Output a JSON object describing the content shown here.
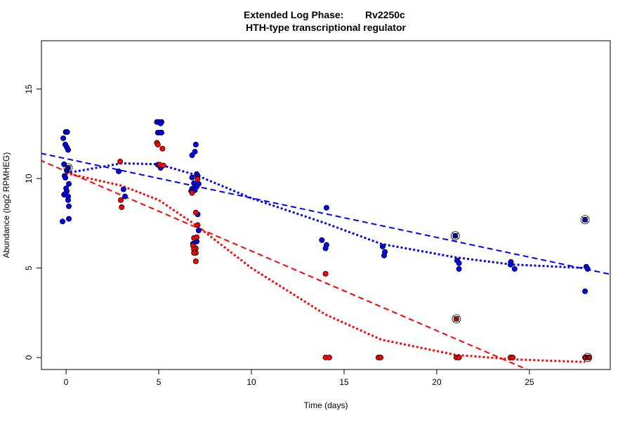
{
  "chart_data": {
    "type": "scatter",
    "title_line1_left": "Extended Log Phase:",
    "title_line1_right": "Rv2250c",
    "title_line2": "HTH-type transcriptional regulator",
    "xlabel": "Time  (days)",
    "ylabel": "Abundance  (log2 RPMHEG)",
    "xlim": [
      -1.33,
      29.36
    ],
    "ylim": [
      -0.67,
      17.7
    ],
    "xticks": [
      0,
      5,
      10,
      15,
      20,
      25
    ],
    "yticks": [
      0,
      5,
      10,
      15
    ],
    "grid": false,
    "colors": {
      "blue": "#0000ff",
      "red": "#ff0000"
    },
    "series": [
      {
        "color": "#0000ff",
        "points": [
          [
            -0.02,
            12.6
          ],
          [
            0.06,
            12.6
          ],
          [
            -0.15,
            12.25
          ],
          [
            -0.04,
            11.9
          ],
          [
            0.04,
            11.75
          ],
          [
            0.11,
            11.6
          ],
          [
            -0.11,
            10.8
          ],
          [
            0.11,
            10.6
          ],
          [
            0.04,
            10.45
          ],
          [
            -0.08,
            10.15
          ],
          [
            -0.04,
            10.05
          ],
          [
            0.15,
            9.7
          ],
          [
            0,
            9.45
          ],
          [
            0.04,
            9.3
          ],
          [
            -0.11,
            9.1
          ],
          [
            -0.04,
            9.15
          ],
          [
            0.11,
            9.0
          ],
          [
            0.11,
            8.8
          ],
          [
            0.15,
            8.45
          ],
          [
            0.15,
            7.75
          ],
          [
            -0.19,
            7.6
          ],
          [
            2.84,
            10.4
          ],
          [
            3.1,
            9.4
          ],
          [
            3.18,
            9.0
          ],
          [
            4.9,
            13.16
          ],
          [
            5.0,
            13.16
          ],
          [
            5.15,
            13.16
          ],
          [
            5.1,
            13.08
          ],
          [
            4.95,
            12.57
          ],
          [
            5.05,
            12.57
          ],
          [
            5.15,
            12.57
          ],
          [
            4.95,
            10.77
          ],
          [
            5.1,
            10.6
          ],
          [
            7.0,
            11.9
          ],
          [
            6.95,
            11.5
          ],
          [
            6.8,
            11.3
          ],
          [
            7.05,
            10.25
          ],
          [
            7.1,
            10.15
          ],
          [
            6.8,
            10.06
          ],
          [
            6.9,
            9.74
          ],
          [
            7.15,
            9.7
          ],
          [
            7.05,
            9.55
          ],
          [
            6.8,
            9.43
          ],
          [
            6.95,
            9.35
          ],
          [
            6.75,
            9.3
          ],
          [
            7.1,
            8.0
          ],
          [
            7.15,
            7.1
          ],
          [
            7.05,
            6.48
          ],
          [
            6.85,
            6.36
          ],
          [
            14.05,
            8.37
          ],
          [
            13.8,
            6.56
          ],
          [
            14.05,
            6.29
          ],
          [
            14.0,
            6.1
          ],
          [
            17.08,
            6.2
          ],
          [
            17.2,
            5.9
          ],
          [
            17.16,
            5.7
          ],
          [
            21.0,
            6.8
          ],
          [
            21.1,
            5.42
          ],
          [
            21.2,
            5.27
          ],
          [
            21.2,
            4.95
          ],
          [
            24.0,
            5.34
          ],
          [
            23.98,
            5.19
          ],
          [
            24.2,
            4.95
          ],
          [
            28.0,
            7.7
          ],
          [
            28.07,
            5.07
          ],
          [
            28.14,
            4.95
          ],
          [
            28.0,
            3.7
          ]
        ],
        "highlighted": [
          [
            0.11,
            10.6
          ],
          [
            21.0,
            6.8
          ],
          [
            28.0,
            7.7
          ]
        ],
        "linear_fit": {
          "intercept": 11.11,
          "slope": -0.22
        },
        "smooth": [
          [
            0,
            10.3
          ],
          [
            3,
            10.85
          ],
          [
            5,
            10.8
          ],
          [
            7,
            10.2
          ],
          [
            10,
            8.9
          ],
          [
            14,
            7.5
          ],
          [
            17,
            6.35
          ],
          [
            21,
            5.6
          ],
          [
            24,
            5.2
          ],
          [
            28,
            5.0
          ]
        ]
      },
      {
        "color": "#ff0000",
        "points": [
          [
            2.92,
            10.95
          ],
          [
            2.95,
            8.8
          ],
          [
            3.0,
            8.4
          ],
          [
            4.9,
            12.0
          ],
          [
            4.95,
            11.9
          ],
          [
            5.2,
            11.67
          ],
          [
            5.05,
            10.77
          ],
          [
            5.25,
            10.73
          ],
          [
            7.1,
            9.98
          ],
          [
            6.8,
            9.2
          ],
          [
            7.0,
            8.1
          ],
          [
            7.1,
            7.4
          ],
          [
            6.9,
            6.68
          ],
          [
            7.05,
            6.72
          ],
          [
            6.85,
            6.25
          ],
          [
            7.0,
            6.1
          ],
          [
            6.9,
            6.05
          ],
          [
            7.0,
            5.85
          ],
          [
            6.9,
            5.85
          ],
          [
            7.0,
            5.38
          ],
          [
            14.0,
            4.68
          ],
          [
            14.0,
            0
          ],
          [
            14.2,
            0
          ],
          [
            16.85,
            0
          ],
          [
            16.97,
            0
          ],
          [
            21.06,
            2.16
          ],
          [
            21.06,
            0
          ],
          [
            21.2,
            0
          ],
          [
            23.98,
            0
          ],
          [
            24.1,
            0
          ],
          [
            28.0,
            0
          ],
          [
            28.14,
            0
          ],
          [
            28.2,
            0
          ]
        ],
        "highlighted": [
          [
            21.06,
            2.16
          ],
          [
            28.14,
            0
          ]
        ],
        "linear_fit": {
          "intercept": 10.4,
          "slope": -0.445
        },
        "smooth": [
          [
            0,
            10.3
          ],
          [
            3,
            9.6
          ],
          [
            5,
            8.8
          ],
          [
            7,
            7.4
          ],
          [
            10,
            5.0
          ],
          [
            14,
            2.4
          ],
          [
            17,
            1.0
          ],
          [
            21,
            0.15
          ],
          [
            24,
            -0.1
          ],
          [
            28,
            -0.25
          ]
        ]
      }
    ]
  }
}
